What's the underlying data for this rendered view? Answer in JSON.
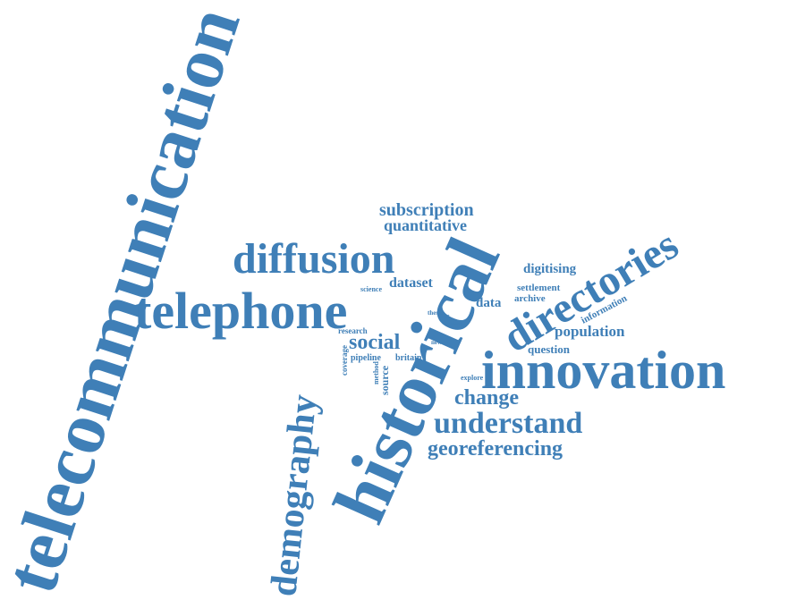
{
  "color": "#3f7fb7",
  "words": [
    {
      "id": "telecommunication",
      "text": "telecommunication",
      "size": 84
    },
    {
      "id": "historical",
      "text": "historical",
      "size": 84
    },
    {
      "id": "innovation",
      "text": "innovation",
      "size": 60
    },
    {
      "id": "telephone",
      "text": "telephone",
      "size": 58
    },
    {
      "id": "diffusion",
      "text": "diffusion",
      "size": 48
    },
    {
      "id": "directories",
      "text": "directories",
      "size": 48
    },
    {
      "id": "demography",
      "text": "demography",
      "size": 42
    },
    {
      "id": "understand",
      "text": "understand",
      "size": 34
    },
    {
      "id": "social",
      "text": "social",
      "size": 24
    },
    {
      "id": "change",
      "text": "change",
      "size": 24
    },
    {
      "id": "georeferencing",
      "text": "georeferencing",
      "size": 24
    },
    {
      "id": "subscription",
      "text": "subscription",
      "size": 20
    },
    {
      "id": "quantitative",
      "text": "quantitative",
      "size": 18
    },
    {
      "id": "population",
      "text": "population",
      "size": 17
    },
    {
      "id": "dataset",
      "text": "dataset",
      "size": 16
    },
    {
      "id": "digitising",
      "text": "digitising",
      "size": 15
    },
    {
      "id": "data",
      "text": "data",
      "size": 15
    },
    {
      "id": "question",
      "text": "question",
      "size": 13
    },
    {
      "id": "source",
      "text": "source",
      "size": 12
    },
    {
      "id": "settlement",
      "text": "settlement",
      "size": 11
    },
    {
      "id": "archive",
      "text": "archive",
      "size": 11
    },
    {
      "id": "information",
      "text": "information",
      "size": 11
    },
    {
      "id": "britain",
      "text": "britain",
      "size": 10
    },
    {
      "id": "pipeline",
      "text": "pipeline",
      "size": 10
    },
    {
      "id": "coverage",
      "text": "coverage",
      "size": 9
    },
    {
      "id": "research",
      "text": "research",
      "size": 9
    },
    {
      "id": "science",
      "text": "science",
      "size": 8
    },
    {
      "id": "method",
      "text": "method",
      "size": 8
    },
    {
      "id": "explore",
      "text": "explore",
      "size": 8
    },
    {
      "id": "thesis",
      "text": "thesis",
      "size": 7
    },
    {
      "id": "newer",
      "text": "newer",
      "size": 7
    },
    {
      "id": "more",
      "text": "more",
      "size": 6
    },
    {
      "id": "use",
      "text": "use",
      "size": 5
    }
  ]
}
